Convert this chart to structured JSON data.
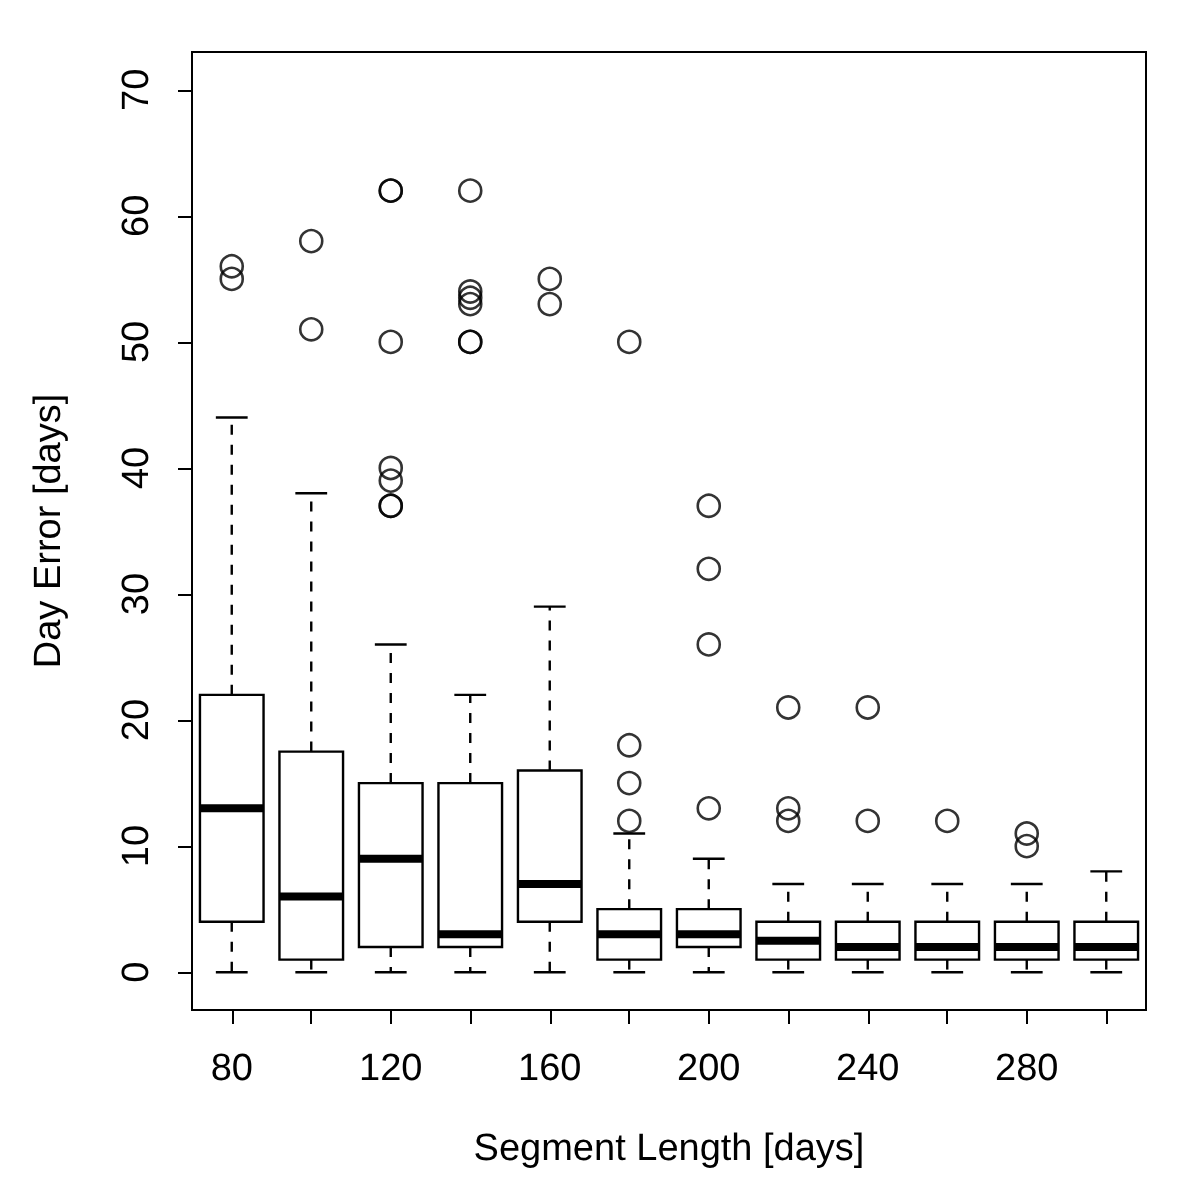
{
  "chart_data": {
    "type": "box",
    "xlabel": "Segment Length [days]",
    "ylabel": "Day Error [days]",
    "categories": [
      "80",
      null,
      "120",
      null,
      "160",
      null,
      "200",
      null,
      "240",
      null,
      "280",
      null
    ],
    "ylim": [
      -3,
      73
    ],
    "yticks": [
      0,
      10,
      20,
      30,
      40,
      50,
      60,
      70
    ],
    "grid": false,
    "legend": false,
    "boxes": [
      {
        "low": 0,
        "q1": 4,
        "median": 13,
        "q3": 22,
        "high": 44,
        "outliers": [
          55,
          56
        ]
      },
      {
        "low": 0,
        "q1": 1,
        "median": 6,
        "q3": 17.5,
        "high": 38,
        "outliers": [
          51,
          58
        ]
      },
      {
        "low": 0,
        "q1": 2,
        "median": 9,
        "q3": 15,
        "high": 26,
        "outliers": [
          37,
          37,
          39,
          40,
          50,
          62,
          62
        ]
      },
      {
        "low": 0,
        "q1": 2,
        "median": 3,
        "q3": 15,
        "high": 22,
        "outliers": [
          50,
          50,
          53,
          53.5,
          54,
          62
        ]
      },
      {
        "low": 0,
        "q1": 4,
        "median": 7,
        "q3": 16,
        "high": 29,
        "outliers": [
          53,
          55
        ]
      },
      {
        "low": 0,
        "q1": 1,
        "median": 3,
        "q3": 5,
        "high": 11,
        "outliers": [
          12,
          15,
          18,
          50
        ]
      },
      {
        "low": 0,
        "q1": 2,
        "median": 3,
        "q3": 5,
        "high": 9,
        "outliers": [
          13,
          26,
          32,
          37
        ]
      },
      {
        "low": 0,
        "q1": 1,
        "median": 2.5,
        "q3": 4,
        "high": 7,
        "outliers": [
          12,
          13,
          21
        ]
      },
      {
        "low": 0,
        "q1": 1,
        "median": 2,
        "q3": 4,
        "high": 7,
        "outliers": [
          12,
          21
        ]
      },
      {
        "low": 0,
        "q1": 1,
        "median": 2,
        "q3": 4,
        "high": 7,
        "outliers": [
          12
        ]
      },
      {
        "low": 0,
        "q1": 1,
        "median": 2,
        "q3": 4,
        "high": 7,
        "outliers": [
          10,
          11
        ]
      },
      {
        "low": 0,
        "q1": 1,
        "median": 2,
        "q3": 4,
        "high": 8
      }
    ]
  }
}
